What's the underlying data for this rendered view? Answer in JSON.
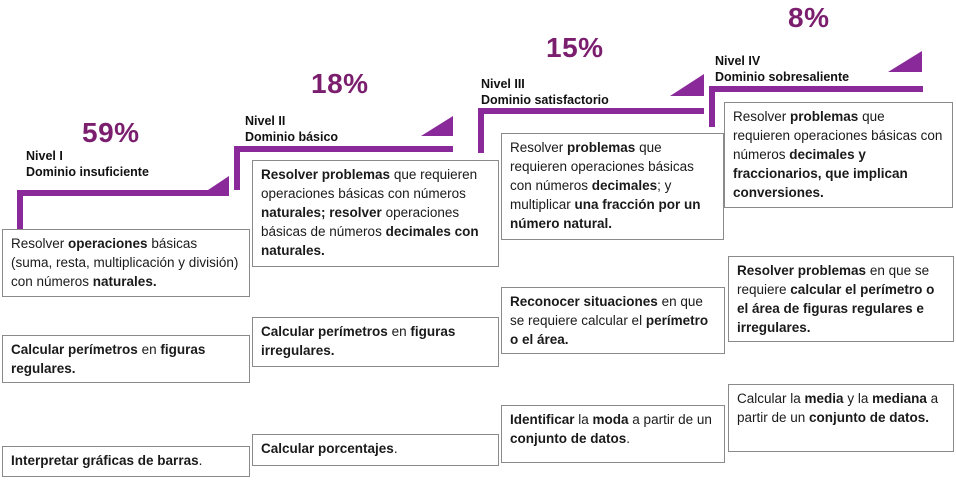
{
  "colors": {
    "accent": "#7b1e6e",
    "purple": "#8a2a9a",
    "border": "#8a8a8a"
  },
  "levels": [
    {
      "percent": "59%",
      "name": "Nivel I",
      "domain": "Dominio insuficiente",
      "skills": [
        [
          {
            "t": "Resolver "
          },
          {
            "t": "operaciones",
            "b": true
          },
          {
            "t": " básicas (suma, resta, multiplicación y división) con números "
          },
          {
            "t": "naturales.",
            "b": true
          }
        ],
        [
          {
            "t": "Calcular perímetros",
            "b": true
          },
          {
            "t": " en "
          },
          {
            "t": "figuras regulares.",
            "b": true
          }
        ],
        [
          {
            "t": "Interpretar gráficas de barras",
            "b": true
          },
          {
            "t": "."
          }
        ]
      ]
    },
    {
      "percent": "18%",
      "name": "Nivel II",
      "domain": "Dominio básico",
      "skills": [
        [
          {
            "t": "Resolver problemas",
            "b": true
          },
          {
            "t": " que requieren operaciones básicas con números "
          },
          {
            "t": "naturales;  resolver",
            "b": true
          },
          {
            "t": " operaciones básicas de números "
          },
          {
            "t": "decimales con naturales.",
            "b": true
          }
        ],
        [
          {
            "t": "Calcular perímetros",
            "b": true
          },
          {
            "t": " en "
          },
          {
            "t": "figuras irregulares.",
            "b": true
          }
        ],
        [
          {
            "t": "Calcular porcentajes",
            "b": true
          },
          {
            "t": "."
          }
        ]
      ]
    },
    {
      "percent": "15%",
      "name": "Nivel III",
      "domain": "Dominio satisfactorio",
      "skills": [
        [
          {
            "t": "Resolver "
          },
          {
            "t": "problemas",
            "b": true
          },
          {
            "t": " que requieren operaciones básicas con números "
          },
          {
            "t": "decimales",
            "b": true
          },
          {
            "t": "; y multiplicar "
          },
          {
            "t": "una fracción por un número natural.",
            "b": true
          }
        ],
        [
          {
            "t": "Reconocer situaciones",
            "b": true
          },
          {
            "t": " en que se requiere calcular el "
          },
          {
            "t": "perímetro o el área.",
            "b": true
          }
        ],
        [
          {
            "t": "Identificar",
            "b": true
          },
          {
            "t": " la "
          },
          {
            "t": "moda",
            "b": true
          },
          {
            "t": " a partir de un "
          },
          {
            "t": "conjunto de datos",
            "b": true
          },
          {
            "t": "."
          }
        ]
      ]
    },
    {
      "percent": "8%",
      "name": "Nivel IV",
      "domain": "Dominio sobresaliente",
      "skills": [
        [
          {
            "t": "Resolver "
          },
          {
            "t": "problemas",
            "b": true
          },
          {
            "t": " que requieren operaciones básicas con números "
          },
          {
            "t": "decimales y fraccionarios, que implican conversiones.",
            "b": true
          }
        ],
        [
          {
            "t": "Resolver problemas",
            "b": true
          },
          {
            "t": " en que se requiere "
          },
          {
            "t": "calcular el perímetro o el área de figuras regulares e irregulares.",
            "b": true
          }
        ],
        [
          {
            "t": "Calcular la "
          },
          {
            "t": "media",
            "b": true
          },
          {
            "t": " y la "
          },
          {
            "t": "mediana",
            "b": true
          },
          {
            "t": " a partir de un "
          },
          {
            "t": "conjunto de datos.",
            "b": true
          }
        ]
      ]
    }
  ]
}
